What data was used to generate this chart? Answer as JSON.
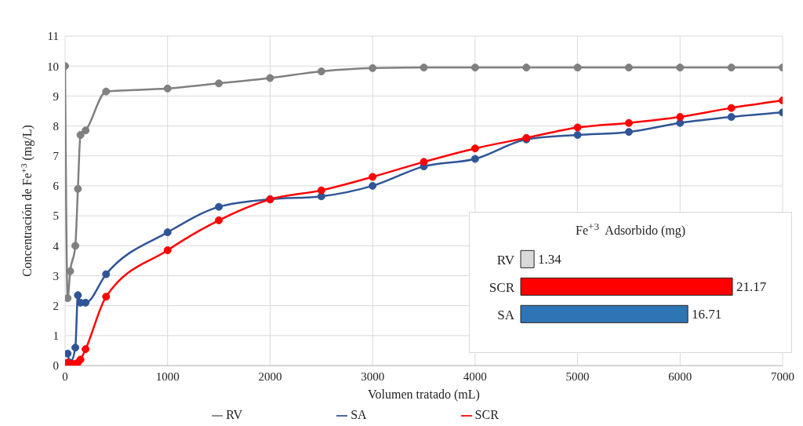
{
  "chart_data": [
    {
      "type": "line",
      "xlabel": "Volumen tratado (mL)",
      "ylabel": "Concentración de Fe$^{+3}$ (mg/L)",
      "xlim": [
        0,
        7000
      ],
      "xticks": [
        0,
        1000,
        2000,
        3000,
        4000,
        5000,
        6000,
        7000
      ],
      "ylim": [
        0,
        11
      ],
      "yticks": [
        0,
        1,
        2,
        3,
        4,
        5,
        6,
        7,
        8,
        9,
        10,
        11
      ],
      "grid": true,
      "legend": "bottom",
      "marker": "circle",
      "series": [
        {
          "name": "SA",
          "color": "#2f5597",
          "x": [
            25,
            50,
            100,
            125,
            150,
            200,
            400,
            1000,
            1500,
            2000,
            2500,
            3000,
            3500,
            4000,
            4500,
            5000,
            5500,
            6000,
            6500,
            7000
          ],
          "values": [
            0.4,
            0.1,
            0.6,
            2.35,
            2.1,
            2.1,
            3.05,
            4.45,
            5.3,
            5.55,
            5.65,
            6.0,
            6.65,
            6.9,
            7.55,
            7.7,
            7.8,
            8.1,
            8.3,
            8.45
          ]
        },
        {
          "name": "SCR",
          "color": "#ff0000",
          "x": [
            25,
            50,
            75,
            100,
            125,
            150,
            200,
            400,
            1000,
            1500,
            2000,
            2500,
            3000,
            3500,
            4000,
            4500,
            5000,
            5500,
            6000,
            6500,
            7000
          ],
          "values": [
            0.1,
            0.05,
            0.05,
            0.05,
            0.1,
            0.2,
            0.55,
            2.3,
            3.85,
            4.85,
            5.55,
            5.85,
            6.3,
            6.8,
            7.25,
            7.6,
            7.95,
            8.1,
            8.3,
            8.6,
            8.85
          ]
        },
        {
          "name": "RV",
          "color": "#808080",
          "x": [
            0,
            25,
            50,
            100,
            125,
            150,
            200,
            400,
            1000,
            1500,
            2000,
            2500,
            3000,
            3500,
            4000,
            4500,
            5000,
            5500,
            6000,
            6500,
            7000
          ],
          "values": [
            10,
            2.25,
            3.15,
            4.0,
            5.9,
            7.7,
            7.85,
            9.15,
            9.25,
            9.42,
            9.6,
            9.82,
            9.93,
            9.95,
            9.95,
            9.95,
            9.95,
            9.95,
            9.95,
            9.95,
            9.95
          ]
        }
      ]
    },
    {
      "type": "bar",
      "orientation": "horizontal",
      "title": "Fe$^{+3}$  Adsorbido (mg)",
      "categories": [
        "RV",
        "SCR",
        "SA"
      ],
      "values": [
        1.34,
        21.17,
        16.71
      ],
      "colors": [
        "#d9d9d9",
        "#ff0000",
        "#2e75b6"
      ],
      "data_labels": true
    }
  ]
}
